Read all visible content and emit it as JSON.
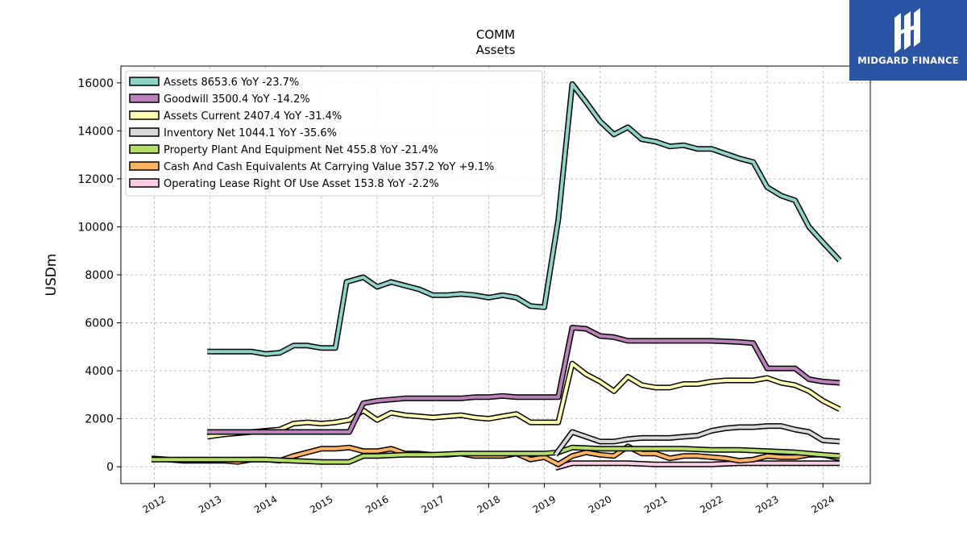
{
  "chart_data": {
    "type": "line",
    "title": "COMM",
    "subtitle": "Assets",
    "xlabel": "",
    "ylabel": "USDm",
    "xlim": [
      2011.4,
      2024.85
    ],
    "ylim": [
      -700,
      16700
    ],
    "x_ticks": [
      "2012",
      "2013",
      "2014",
      "2015",
      "2016",
      "2017",
      "2018",
      "2019",
      "2020",
      "2021",
      "2022",
      "2023",
      "2024"
    ],
    "y_ticks": [
      "0",
      "2000",
      "4000",
      "6000",
      "8000",
      "10000",
      "12000",
      "14000",
      "16000"
    ],
    "grid": true,
    "legend_position": "top-left",
    "series": [
      {
        "name": "Assets",
        "legend_label": "Assets  8653.6 YoY -23.7%",
        "color": "#8dd3c7",
        "x": [
          2012.95,
          2013.25,
          2013.5,
          2013.75,
          2014.0,
          2014.25,
          2014.5,
          2014.75,
          2015.0,
          2015.25,
          2015.45,
          2015.75,
          2016.0,
          2016.25,
          2016.5,
          2016.75,
          2017.0,
          2017.25,
          2017.5,
          2017.75,
          2018.0,
          2018.25,
          2018.5,
          2018.75,
          2019.0,
          2019.25,
          2019.5,
          2019.75,
          2020.0,
          2020.25,
          2020.5,
          2020.75,
          2021.0,
          2021.25,
          2021.5,
          2021.75,
          2022.0,
          2022.25,
          2022.5,
          2022.75,
          2023.0,
          2023.25,
          2023.5,
          2023.75,
          2024.0,
          2024.3
        ],
        "values": [
          4800,
          4800,
          4800,
          4800,
          4700,
          4750,
          5050,
          5050,
          4950,
          4950,
          7700,
          7900,
          7500,
          7700,
          7550,
          7400,
          7150,
          7150,
          7200,
          7150,
          7050,
          7150,
          7050,
          6700,
          6650,
          10300,
          15950,
          15200,
          14400,
          13850,
          14150,
          13650,
          13550,
          13350,
          13400,
          13250,
          13250,
          13050,
          12850,
          12700,
          11650,
          11300,
          11100,
          10000,
          9350,
          8600
        ]
      },
      {
        "name": "Goodwill",
        "legend_label": "Goodwill  3500.4 YoY -14.2%",
        "color": "#bc80bd",
        "x": [
          2012.95,
          2013.5,
          2014.0,
          2014.5,
          2015.0,
          2015.5,
          2015.75,
          2016.0,
          2016.25,
          2016.5,
          2016.75,
          2017.0,
          2017.5,
          2017.75,
          2018.0,
          2018.25,
          2018.5,
          2019.0,
          2019.25,
          2019.5,
          2019.75,
          2020.0,
          2020.25,
          2020.5,
          2021.0,
          2021.5,
          2022.0,
          2022.5,
          2022.75,
          2023.0,
          2023.25,
          2023.5,
          2023.75,
          2024.0,
          2024.3
        ],
        "values": [
          1450,
          1450,
          1450,
          1450,
          1450,
          1450,
          2650,
          2750,
          2800,
          2850,
          2850,
          2850,
          2850,
          2900,
          2900,
          2950,
          2900,
          2900,
          2900,
          5800,
          5750,
          5450,
          5400,
          5250,
          5250,
          5250,
          5250,
          5200,
          5150,
          4100,
          4100,
          4100,
          3650,
          3550,
          3500
        ]
      },
      {
        "name": "Assets Current",
        "legend_label": "Assets Current  2407.4 YoY -31.4%",
        "color": "#ffffb3",
        "x": [
          2012.95,
          2013.25,
          2013.5,
          2013.75,
          2014.0,
          2014.25,
          2014.5,
          2014.75,
          2015.0,
          2015.25,
          2015.5,
          2015.75,
          2016.0,
          2016.25,
          2016.5,
          2016.75,
          2017.0,
          2017.25,
          2017.5,
          2017.75,
          2018.0,
          2018.25,
          2018.5,
          2018.75,
          2019.0,
          2019.25,
          2019.5,
          2019.75,
          2020.0,
          2020.25,
          2020.5,
          2020.75,
          2021.0,
          2021.25,
          2021.5,
          2021.75,
          2022.0,
          2022.25,
          2022.5,
          2022.75,
          2023.0,
          2023.25,
          2023.5,
          2023.75,
          2024.0,
          2024.3
        ],
        "values": [
          1250,
          1350,
          1400,
          1450,
          1500,
          1550,
          1800,
          1850,
          1800,
          1850,
          1950,
          2350,
          1950,
          2250,
          2150,
          2100,
          2050,
          2100,
          2150,
          2050,
          2000,
          2100,
          2200,
          1850,
          1850,
          1850,
          4300,
          3850,
          3550,
          3150,
          3750,
          3400,
          3300,
          3300,
          3450,
          3450,
          3550,
          3600,
          3600,
          3600,
          3700,
          3500,
          3400,
          3150,
          2750,
          2400
        ]
      },
      {
        "name": "Inventory Net",
        "legend_label": "Inventory Net  1044.1 YoY -35.6%",
        "color": "#d9d9d9",
        "x": [
          2019.2,
          2019.5,
          2019.75,
          2020.0,
          2020.25,
          2020.5,
          2020.75,
          2021.0,
          2021.25,
          2021.5,
          2021.75,
          2022.0,
          2022.25,
          2022.5,
          2022.75,
          2023.0,
          2023.25,
          2023.5,
          2023.75,
          2024.0,
          2024.3
        ],
        "values": [
          500,
          1450,
          1250,
          1050,
          1050,
          1150,
          1200,
          1200,
          1200,
          1250,
          1300,
          1500,
          1600,
          1650,
          1650,
          1700,
          1700,
          1550,
          1450,
          1100,
          1050
        ]
      },
      {
        "name": "Property Plant And Equipment Net",
        "legend_label": "Property Plant And Equipment Net  455.8 YoY -21.4%",
        "color": "#b3de69",
        "x": [
          2011.95,
          2012.5,
          2013.0,
          2013.5,
          2014.0,
          2014.5,
          2015.0,
          2015.5,
          2015.75,
          2016.0,
          2016.5,
          2017.0,
          2017.5,
          2018.0,
          2018.5,
          2019.0,
          2019.25,
          2019.5,
          2020.0,
          2020.5,
          2021.0,
          2021.5,
          2022.0,
          2022.5,
          2023.0,
          2023.5,
          2024.0,
          2024.3
        ],
        "values": [
          300,
          300,
          300,
          300,
          300,
          250,
          200,
          200,
          450,
          450,
          500,
          500,
          550,
          550,
          550,
          550,
          600,
          800,
          750,
          750,
          750,
          750,
          700,
          700,
          650,
          600,
          500,
          450
        ]
      },
      {
        "name": "Cash And Cash Equivalents At Carrying Value",
        "legend_label": "Cash And Cash Equivalents At Carrying Value  357.2 YoY +9.1%",
        "color": "#fdb462",
        "x": [
          2011.95,
          2012.25,
          2012.5,
          2012.75,
          2013.0,
          2013.25,
          2013.5,
          2013.75,
          2014.0,
          2014.25,
          2014.5,
          2014.75,
          2015.0,
          2015.25,
          2015.5,
          2015.75,
          2016.0,
          2016.25,
          2016.5,
          2016.75,
          2017.0,
          2017.25,
          2017.5,
          2017.75,
          2018.0,
          2018.25,
          2018.5,
          2018.75,
          2019.0,
          2019.25,
          2019.5,
          2019.75,
          2020.0,
          2020.25,
          2020.5,
          2020.75,
          2021.0,
          2021.25,
          2021.5,
          2021.75,
          2022.0,
          2022.25,
          2022.5,
          2022.75,
          2023.0,
          2023.25,
          2023.5,
          2023.75,
          2024.0,
          2024.3
        ],
        "values": [
          350,
          300,
          250,
          250,
          250,
          250,
          200,
          300,
          300,
          250,
          450,
          600,
          750,
          750,
          800,
          650,
          650,
          750,
          550,
          550,
          500,
          500,
          550,
          450,
          450,
          450,
          550,
          300,
          400,
          100,
          450,
          600,
          500,
          450,
          850,
          550,
          550,
          350,
          450,
          450,
          400,
          350,
          250,
          300,
          450,
          400,
          400,
          500,
          500,
          350
        ]
      },
      {
        "name": "Operating Lease Right Of Use Asset",
        "legend_label": "Operating Lease Right Of Use Asset  153.8 YoY -2.2%",
        "color": "#fccde5",
        "x": [
          2019.2,
          2019.5,
          2020.0,
          2020.5,
          2021.0,
          2021.5,
          2022.0,
          2022.5,
          2023.0,
          2023.5,
          2024.0,
          2024.3
        ],
        "values": [
          -50,
          150,
          150,
          150,
          100,
          100,
          100,
          150,
          150,
          150,
          150,
          150
        ]
      }
    ]
  },
  "branding": {
    "logo_text": "MIDGARD FINANCE",
    "logo_color": "#2a55a5"
  }
}
